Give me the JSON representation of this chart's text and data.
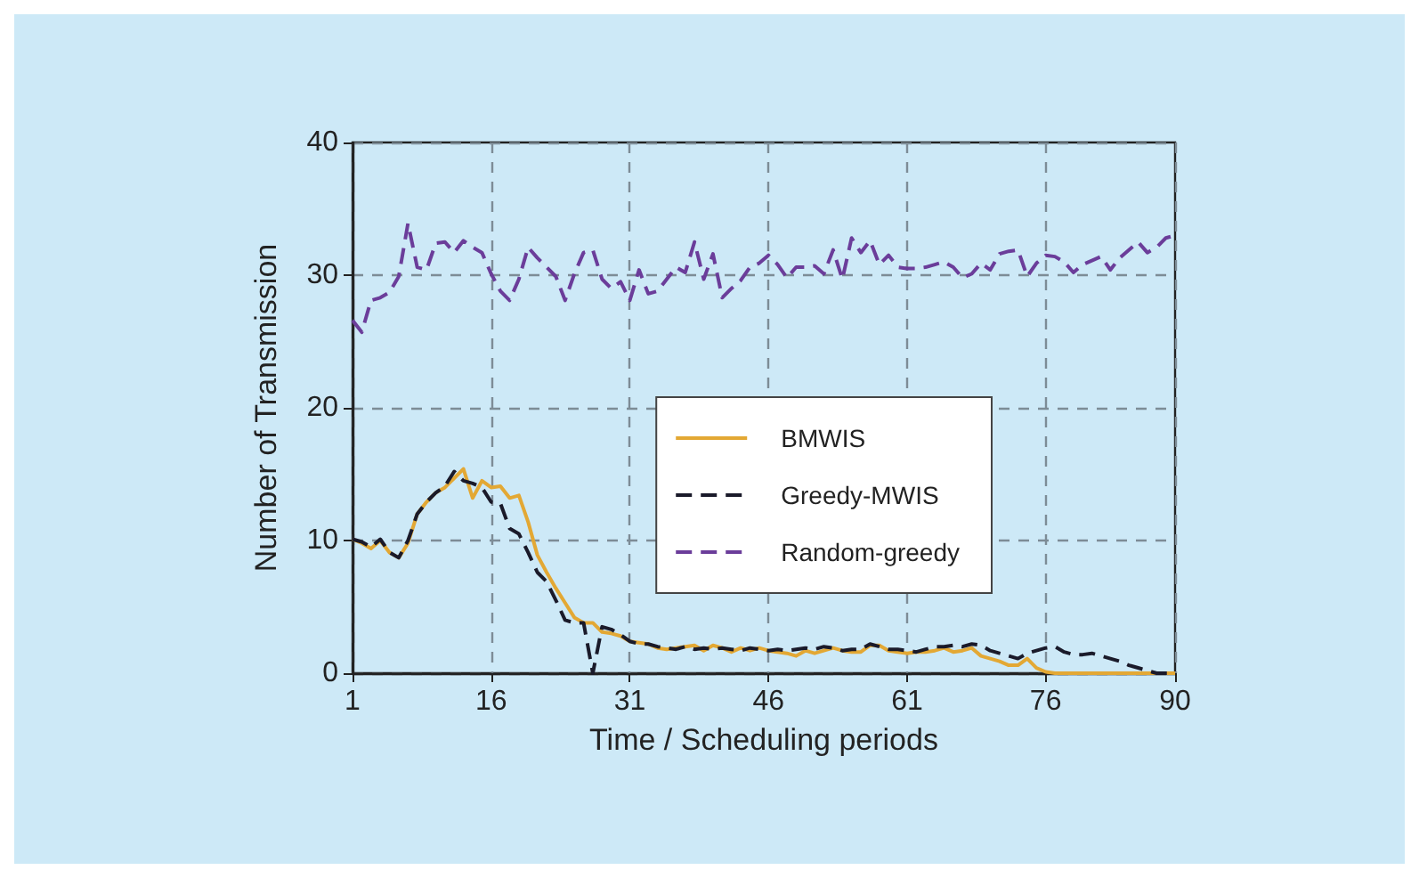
{
  "chart_data": {
    "type": "line",
    "xlabel": "Time / Scheduling periods",
    "ylabel": "Number of Transmission",
    "x": [
      1,
      2,
      3,
      4,
      5,
      6,
      7,
      8,
      9,
      10,
      11,
      12,
      13,
      14,
      15,
      16,
      17,
      18,
      19,
      20,
      21,
      22,
      23,
      24,
      25,
      26,
      27,
      28,
      29,
      30,
      31,
      32,
      33,
      34,
      35,
      36,
      37,
      38,
      39,
      40,
      41,
      42,
      43,
      44,
      45,
      46,
      47,
      48,
      49,
      50,
      51,
      52,
      53,
      54,
      55,
      56,
      57,
      58,
      59,
      60,
      61,
      62,
      63,
      64,
      65,
      66,
      67,
      68,
      69,
      70,
      71,
      72,
      73,
      74,
      75,
      76,
      77,
      78,
      79,
      80,
      81,
      82,
      83,
      84,
      85,
      86,
      87,
      88,
      89,
      90
    ],
    "xlim": [
      1,
      90
    ],
    "xticks": [
      1,
      16,
      31,
      46,
      61,
      76,
      90
    ],
    "ylim": [
      0,
      40
    ],
    "yticks": [
      0,
      10,
      20,
      30,
      40
    ],
    "grid": true,
    "legend": "right",
    "marker": "none",
    "series": [
      {
        "name": "BMWIS",
        "color": "#e3a834",
        "line_style": "solid",
        "values": [
          10.1,
          9.8,
          9.4,
          10.0,
          9.1,
          8.7,
          9.8,
          12.0,
          12.9,
          13.6,
          14.0,
          14.7,
          15.4,
          13.2,
          14.5,
          14.0,
          14.1,
          13.2,
          13.4,
          11.4,
          8.9,
          7.6,
          6.4,
          5.3,
          4.2,
          3.8,
          3.8,
          3.1,
          3.0,
          2.8,
          2.4,
          2.3,
          2.2,
          1.9,
          1.8,
          1.9,
          2.0,
          2.1,
          1.7,
          2.1,
          1.9,
          1.6,
          1.9,
          1.7,
          1.9,
          1.7,
          1.6,
          1.5,
          1.3,
          1.7,
          1.5,
          1.7,
          1.9,
          1.7,
          1.6,
          1.6,
          2.1,
          2.1,
          1.7,
          1.6,
          1.5,
          1.6,
          1.6,
          1.7,
          1.9,
          1.6,
          1.7,
          1.9,
          1.3,
          1.1,
          0.9,
          0.6,
          0.6,
          1.1,
          0.4,
          0.1,
          0,
          0,
          0,
          0,
          0,
          0,
          0,
          0,
          0,
          0,
          0,
          0,
          0,
          0
        ]
      },
      {
        "name": "Greedy-MWIS",
        "color": "#1a1a2a",
        "line_style": "dashed",
        "values": [
          10.1,
          9.9,
          9.5,
          10.1,
          9.1,
          8.7,
          10.0,
          12.0,
          12.9,
          13.6,
          14.1,
          15.2,
          14.5,
          14.3,
          14.0,
          12.9,
          12.8,
          10.9,
          10.5,
          9.1,
          7.6,
          6.9,
          5.5,
          4.0,
          3.8,
          3.8,
          0,
          3.5,
          3.3,
          2.9,
          2.4,
          2.2,
          2.2,
          2.0,
          1.9,
          1.8,
          2.0,
          1.8,
          1.9,
          1.8,
          1.9,
          1.8,
          1.7,
          1.9,
          1.8,
          1.7,
          1.8,
          1.7,
          1.8,
          1.9,
          1.8,
          2.0,
          1.9,
          1.7,
          1.8,
          1.8,
          2.2,
          2.0,
          1.8,
          1.8,
          1.7,
          1.6,
          1.8,
          2.0,
          2.0,
          2.1,
          2.0,
          2.2,
          2.1,
          1.7,
          1.5,
          1.3,
          1.1,
          1.5,
          1.7,
          1.9,
          2.0,
          1.6,
          1.4,
          1.4,
          1.5,
          1.3,
          1.1,
          0.9,
          0.6,
          0.4,
          0.2,
          0,
          0,
          0
        ]
      },
      {
        "name": "Random-greedy",
        "color": "#6b3d9a",
        "line_style": "dashed",
        "values": [
          26.6,
          25.7,
          28.1,
          28.3,
          28.7,
          29.9,
          33.9,
          30.6,
          30.4,
          32.4,
          32.5,
          31.7,
          32.6,
          32.1,
          31.7,
          30.1,
          28.8,
          28.1,
          29.7,
          32.1,
          31.3,
          30.6,
          29.9,
          28.1,
          30.1,
          31.7,
          31.9,
          29.7,
          29.0,
          29.5,
          28.1,
          30.4,
          28.6,
          28.8,
          29.7,
          30.6,
          30.2,
          32.5,
          29.7,
          31.6,
          28.3,
          29.0,
          29.6,
          30.6,
          30.9,
          31.5,
          30.8,
          29.8,
          30.6,
          30.6,
          30.7,
          30.1,
          31.9,
          29.7,
          32.8,
          31.7,
          32.6,
          30.8,
          31.5,
          30.6,
          30.5,
          30.5,
          30.6,
          30.8,
          31.0,
          30.6,
          29.8,
          30.1,
          30.9,
          30.4,
          31.6,
          31.8,
          31.9,
          29.9,
          30.9,
          31.5,
          31.4,
          31.0,
          30.2,
          30.8,
          31.1,
          31.4,
          30.4,
          31.3,
          31.9,
          32.5,
          31.7,
          32.1,
          32.8,
          33.0
        ]
      }
    ]
  }
}
